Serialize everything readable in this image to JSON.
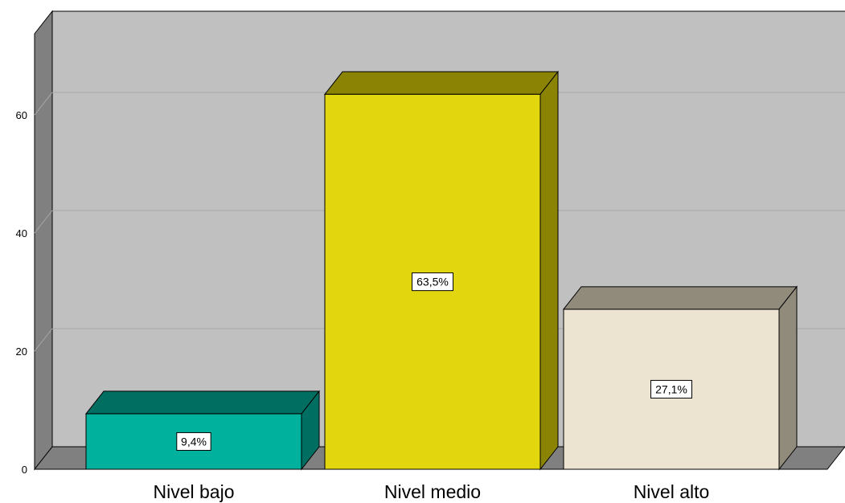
{
  "chart_data": {
    "type": "bar",
    "style": "3d",
    "categories": [
      "Nivel bajo",
      "Nivel medio",
      "Nivel alto"
    ],
    "values": [
      9.4,
      63.5,
      27.1
    ],
    "data_labels": [
      "9,4%",
      "63,5%",
      "27,1%"
    ],
    "yticks": [
      0,
      20,
      40,
      60
    ],
    "ylim": [
      0,
      72
    ],
    "grid": true,
    "legend": "none",
    "colors": {
      "bars": [
        {
          "front": "#00b29e",
          "top": "#006e61",
          "side": "#006e61"
        },
        {
          "front": "#e2d60e",
          "top": "#8b8304",
          "side": "#8b8304"
        },
        {
          "front": "#ece4d0",
          "top": "#918b7c",
          "side": "#918b7c"
        }
      ],
      "back_wall": "#c0c0c0",
      "side_wall": "#808080",
      "floor": "#808080",
      "gridline": "#a8a8a8"
    }
  }
}
